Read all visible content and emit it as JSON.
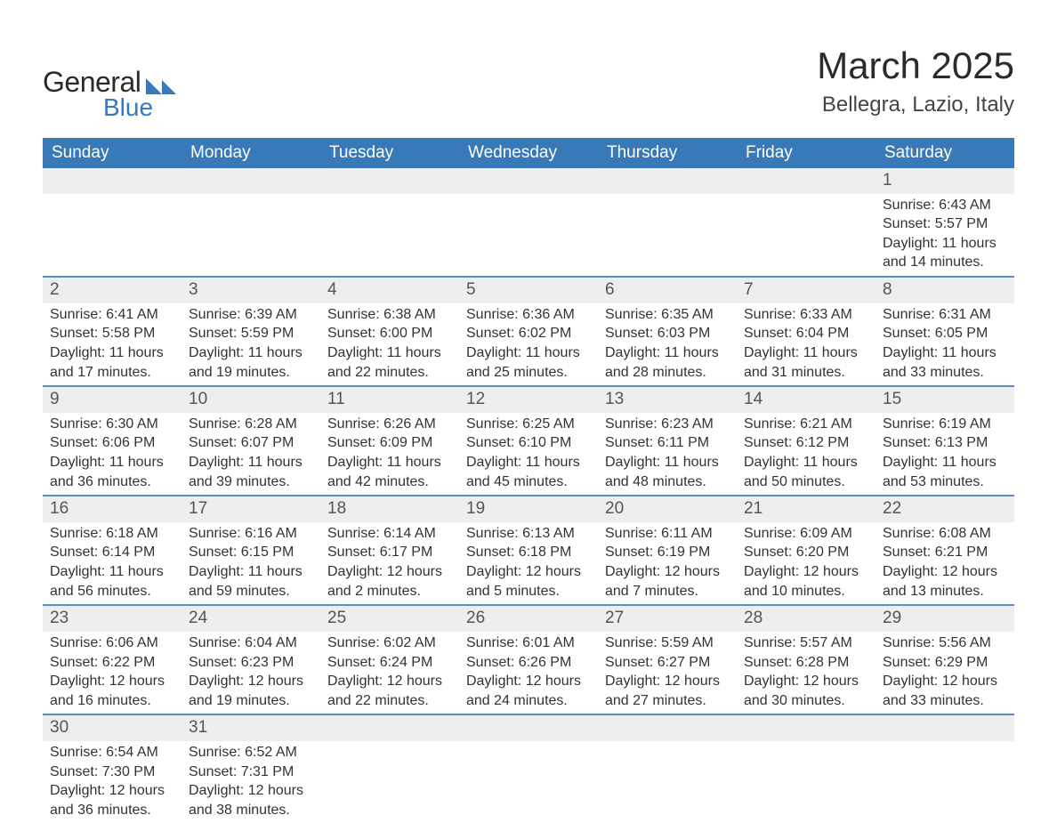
{
  "brand": {
    "word1": "General",
    "word2": "Blue",
    "accent": "#3a79b7",
    "text": "#2b2b2b"
  },
  "title": "March 2025",
  "location": "Bellegra, Lazio, Italy",
  "colors": {
    "header_bg": "#3a79b7",
    "header_text": "#ffffff",
    "row_divider": "#5a8fc4",
    "daynum_bg": "#eeeeee",
    "daynum_text": "#555555",
    "body_text": "#333333",
    "page_bg": "#ffffff"
  },
  "fonts": {
    "title_pt": 42,
    "location_pt": 24,
    "header_pt": 19,
    "daynum_pt": 19,
    "body_pt": 16
  },
  "weekdays": [
    "Sunday",
    "Monday",
    "Tuesday",
    "Wednesday",
    "Thursday",
    "Friday",
    "Saturday"
  ],
  "weeks": [
    [
      null,
      null,
      null,
      null,
      null,
      null,
      {
        "n": "1",
        "sunrise": "Sunrise: 6:43 AM",
        "sunset": "Sunset: 5:57 PM",
        "daylight1": "Daylight: 11 hours",
        "daylight2": "and 14 minutes."
      }
    ],
    [
      {
        "n": "2",
        "sunrise": "Sunrise: 6:41 AM",
        "sunset": "Sunset: 5:58 PM",
        "daylight1": "Daylight: 11 hours",
        "daylight2": "and 17 minutes."
      },
      {
        "n": "3",
        "sunrise": "Sunrise: 6:39 AM",
        "sunset": "Sunset: 5:59 PM",
        "daylight1": "Daylight: 11 hours",
        "daylight2": "and 19 minutes."
      },
      {
        "n": "4",
        "sunrise": "Sunrise: 6:38 AM",
        "sunset": "Sunset: 6:00 PM",
        "daylight1": "Daylight: 11 hours",
        "daylight2": "and 22 minutes."
      },
      {
        "n": "5",
        "sunrise": "Sunrise: 6:36 AM",
        "sunset": "Sunset: 6:02 PM",
        "daylight1": "Daylight: 11 hours",
        "daylight2": "and 25 minutes."
      },
      {
        "n": "6",
        "sunrise": "Sunrise: 6:35 AM",
        "sunset": "Sunset: 6:03 PM",
        "daylight1": "Daylight: 11 hours",
        "daylight2": "and 28 minutes."
      },
      {
        "n": "7",
        "sunrise": "Sunrise: 6:33 AM",
        "sunset": "Sunset: 6:04 PM",
        "daylight1": "Daylight: 11 hours",
        "daylight2": "and 31 minutes."
      },
      {
        "n": "8",
        "sunrise": "Sunrise: 6:31 AM",
        "sunset": "Sunset: 6:05 PM",
        "daylight1": "Daylight: 11 hours",
        "daylight2": "and 33 minutes."
      }
    ],
    [
      {
        "n": "9",
        "sunrise": "Sunrise: 6:30 AM",
        "sunset": "Sunset: 6:06 PM",
        "daylight1": "Daylight: 11 hours",
        "daylight2": "and 36 minutes."
      },
      {
        "n": "10",
        "sunrise": "Sunrise: 6:28 AM",
        "sunset": "Sunset: 6:07 PM",
        "daylight1": "Daylight: 11 hours",
        "daylight2": "and 39 minutes."
      },
      {
        "n": "11",
        "sunrise": "Sunrise: 6:26 AM",
        "sunset": "Sunset: 6:09 PM",
        "daylight1": "Daylight: 11 hours",
        "daylight2": "and 42 minutes."
      },
      {
        "n": "12",
        "sunrise": "Sunrise: 6:25 AM",
        "sunset": "Sunset: 6:10 PM",
        "daylight1": "Daylight: 11 hours",
        "daylight2": "and 45 minutes."
      },
      {
        "n": "13",
        "sunrise": "Sunrise: 6:23 AM",
        "sunset": "Sunset: 6:11 PM",
        "daylight1": "Daylight: 11 hours",
        "daylight2": "and 48 minutes."
      },
      {
        "n": "14",
        "sunrise": "Sunrise: 6:21 AM",
        "sunset": "Sunset: 6:12 PM",
        "daylight1": "Daylight: 11 hours",
        "daylight2": "and 50 minutes."
      },
      {
        "n": "15",
        "sunrise": "Sunrise: 6:19 AM",
        "sunset": "Sunset: 6:13 PM",
        "daylight1": "Daylight: 11 hours",
        "daylight2": "and 53 minutes."
      }
    ],
    [
      {
        "n": "16",
        "sunrise": "Sunrise: 6:18 AM",
        "sunset": "Sunset: 6:14 PM",
        "daylight1": "Daylight: 11 hours",
        "daylight2": "and 56 minutes."
      },
      {
        "n": "17",
        "sunrise": "Sunrise: 6:16 AM",
        "sunset": "Sunset: 6:15 PM",
        "daylight1": "Daylight: 11 hours",
        "daylight2": "and 59 minutes."
      },
      {
        "n": "18",
        "sunrise": "Sunrise: 6:14 AM",
        "sunset": "Sunset: 6:17 PM",
        "daylight1": "Daylight: 12 hours",
        "daylight2": "and 2 minutes."
      },
      {
        "n": "19",
        "sunrise": "Sunrise: 6:13 AM",
        "sunset": "Sunset: 6:18 PM",
        "daylight1": "Daylight: 12 hours",
        "daylight2": "and 5 minutes."
      },
      {
        "n": "20",
        "sunrise": "Sunrise: 6:11 AM",
        "sunset": "Sunset: 6:19 PM",
        "daylight1": "Daylight: 12 hours",
        "daylight2": "and 7 minutes."
      },
      {
        "n": "21",
        "sunrise": "Sunrise: 6:09 AM",
        "sunset": "Sunset: 6:20 PM",
        "daylight1": "Daylight: 12 hours",
        "daylight2": "and 10 minutes."
      },
      {
        "n": "22",
        "sunrise": "Sunrise: 6:08 AM",
        "sunset": "Sunset: 6:21 PM",
        "daylight1": "Daylight: 12 hours",
        "daylight2": "and 13 minutes."
      }
    ],
    [
      {
        "n": "23",
        "sunrise": "Sunrise: 6:06 AM",
        "sunset": "Sunset: 6:22 PM",
        "daylight1": "Daylight: 12 hours",
        "daylight2": "and 16 minutes."
      },
      {
        "n": "24",
        "sunrise": "Sunrise: 6:04 AM",
        "sunset": "Sunset: 6:23 PM",
        "daylight1": "Daylight: 12 hours",
        "daylight2": "and 19 minutes."
      },
      {
        "n": "25",
        "sunrise": "Sunrise: 6:02 AM",
        "sunset": "Sunset: 6:24 PM",
        "daylight1": "Daylight: 12 hours",
        "daylight2": "and 22 minutes."
      },
      {
        "n": "26",
        "sunrise": "Sunrise: 6:01 AM",
        "sunset": "Sunset: 6:26 PM",
        "daylight1": "Daylight: 12 hours",
        "daylight2": "and 24 minutes."
      },
      {
        "n": "27",
        "sunrise": "Sunrise: 5:59 AM",
        "sunset": "Sunset: 6:27 PM",
        "daylight1": "Daylight: 12 hours",
        "daylight2": "and 27 minutes."
      },
      {
        "n": "28",
        "sunrise": "Sunrise: 5:57 AM",
        "sunset": "Sunset: 6:28 PM",
        "daylight1": "Daylight: 12 hours",
        "daylight2": "and 30 minutes."
      },
      {
        "n": "29",
        "sunrise": "Sunrise: 5:56 AM",
        "sunset": "Sunset: 6:29 PM",
        "daylight1": "Daylight: 12 hours",
        "daylight2": "and 33 minutes."
      }
    ],
    [
      {
        "n": "30",
        "sunrise": "Sunrise: 6:54 AM",
        "sunset": "Sunset: 7:30 PM",
        "daylight1": "Daylight: 12 hours",
        "daylight2": "and 36 minutes."
      },
      {
        "n": "31",
        "sunrise": "Sunrise: 6:52 AM",
        "sunset": "Sunset: 7:31 PM",
        "daylight1": "Daylight: 12 hours",
        "daylight2": "and 38 minutes."
      },
      null,
      null,
      null,
      null,
      null
    ]
  ]
}
